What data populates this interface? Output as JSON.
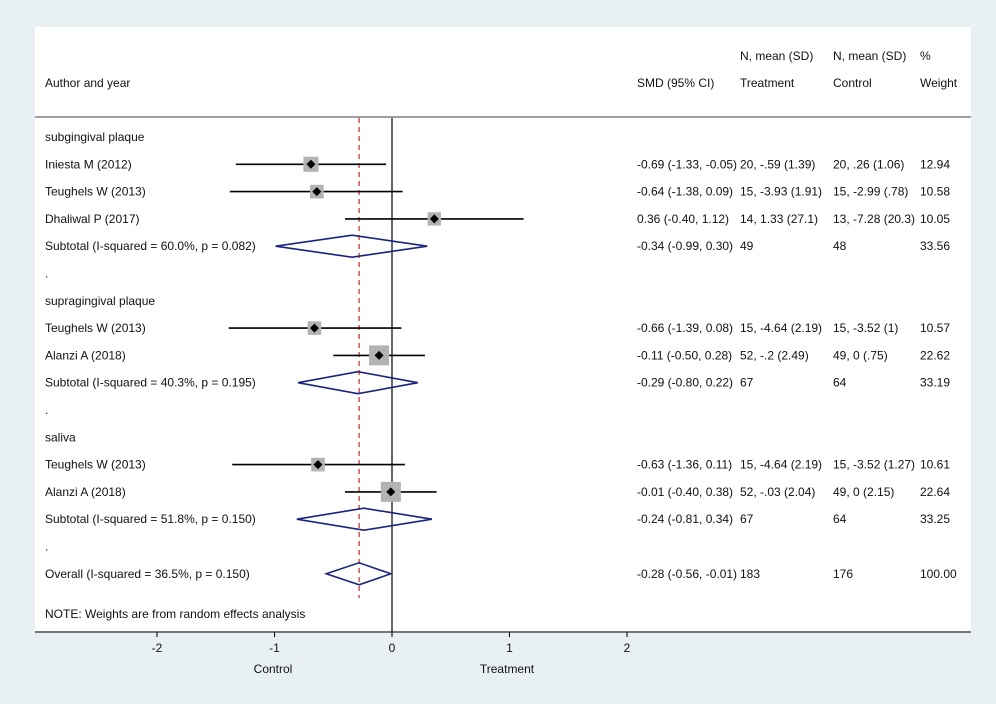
{
  "chart_data": {
    "type": "forest",
    "columns": {
      "study": "Author and year",
      "effect": "SMD (95% CI)",
      "treatment_top": "N, mean (SD)",
      "treatment_bottom": "Treatment",
      "control_top": "N, mean (SD)",
      "control_bottom": "Control",
      "weight_top": "%",
      "weight_bottom": "Weight"
    },
    "rows": [
      {
        "kind": "header",
        "label": "subgingival plaque"
      },
      {
        "kind": "study",
        "label": "Iniesta M (2012)",
        "est": -0.69,
        "lo": -1.33,
        "hi": -0.05,
        "weight": 12.94,
        "ci_text": "-0.69 (-1.33, -0.05)",
        "treat_text": "20, -.59 (1.39)",
        "ctrl_text": "20, .26 (1.06)",
        "weight_text": "12.94"
      },
      {
        "kind": "study",
        "label": "Teughels W (2013)",
        "est": -0.64,
        "lo": -1.38,
        "hi": 0.09,
        "weight": 10.58,
        "ci_text": "-0.64 (-1.38, 0.09)",
        "treat_text": "15, -3.93 (1.91)",
        "ctrl_text": "15, -2.99 (.78)",
        "weight_text": "10.58"
      },
      {
        "kind": "study",
        "label": "Dhaliwal P (2017)",
        "est": 0.36,
        "lo": -0.4,
        "hi": 1.12,
        "weight": 10.05,
        "ci_text": "0.36 (-0.40, 1.12)",
        "treat_text": "14, 1.33 (27.1)",
        "ctrl_text": "13, -7.28 (20.3)",
        "weight_text": "10.05"
      },
      {
        "kind": "subtotal",
        "label": "Subtotal  (I-squared = 60.0%, p = 0.082)",
        "est": -0.34,
        "lo": -0.99,
        "hi": 0.3,
        "ci_text": "-0.34 (-0.99, 0.30)",
        "treat_text": "49",
        "ctrl_text": "48",
        "weight_text": "33.56"
      },
      {
        "kind": "dot",
        "label": "."
      },
      {
        "kind": "header",
        "label": "supragingival plaque"
      },
      {
        "kind": "study",
        "label": "Teughels W (2013)",
        "est": -0.66,
        "lo": -1.39,
        "hi": 0.08,
        "weight": 10.57,
        "ci_text": "-0.66 (-1.39, 0.08)",
        "treat_text": "15, -4.64 (2.19)",
        "ctrl_text": "15, -3.52 (1)",
        "weight_text": "10.57"
      },
      {
        "kind": "study",
        "label": "Alanzi A (2018)",
        "est": -0.11,
        "lo": -0.5,
        "hi": 0.28,
        "weight": 22.62,
        "ci_text": "-0.11 (-0.50, 0.28)",
        "treat_text": "52, -.2 (2.49)",
        "ctrl_text": "49, 0 (.75)",
        "weight_text": "22.62"
      },
      {
        "kind": "subtotal",
        "label": "Subtotal  (I-squared = 40.3%, p = 0.195)",
        "est": -0.29,
        "lo": -0.8,
        "hi": 0.22,
        "ci_text": "-0.29 (-0.80, 0.22)",
        "treat_text": "67",
        "ctrl_text": "64",
        "weight_text": "33.19"
      },
      {
        "kind": "dot",
        "label": "."
      },
      {
        "kind": "header",
        "label": "saliva"
      },
      {
        "kind": "study",
        "label": "Teughels W (2013)",
        "est": -0.63,
        "lo": -1.36,
        "hi": 0.11,
        "weight": 10.61,
        "ci_text": "-0.63 (-1.36, 0.11)",
        "treat_text": "15, -4.64 (2.19)",
        "ctrl_text": "15, -3.52 (1.27)",
        "weight_text": "10.61"
      },
      {
        "kind": "study",
        "label": "Alanzi A (2018)",
        "est": -0.01,
        "lo": -0.4,
        "hi": 0.38,
        "weight": 22.64,
        "ci_text": "-0.01 (-0.40, 0.38)",
        "treat_text": "52, -.03 (2.04)",
        "ctrl_text": "49, 0 (2.15)",
        "weight_text": "22.64"
      },
      {
        "kind": "subtotal",
        "label": "Subtotal  (I-squared = 51.8%, p = 0.150)",
        "est": -0.24,
        "lo": -0.81,
        "hi": 0.34,
        "ci_text": "-0.24 (-0.81, 0.34)",
        "treat_text": "67",
        "ctrl_text": "64",
        "weight_text": "33.25"
      },
      {
        "kind": "dot",
        "label": "."
      },
      {
        "kind": "overall",
        "label": "Overall  (I-squared = 36.5%, p = 0.150)",
        "est": -0.28,
        "lo": -0.56,
        "hi": -0.01,
        "ci_text": "-0.28 (-0.56, -0.01)",
        "treat_text": "183",
        "ctrl_text": "176",
        "weight_text": "100.00"
      }
    ],
    "note": "NOTE: Weights are from random effects analysis",
    "x_axis": {
      "range": [
        -2,
        2
      ],
      "ticks": [
        -2,
        -1,
        0,
        1,
        2
      ],
      "tick_labels": [
        "-2",
        "-1",
        "0",
        "1",
        "2"
      ],
      "left_label": "Control",
      "right_label": "Treatment"
    },
    "null_line": 0,
    "overall_line": -0.28,
    "colors": {
      "diamond": "#1a237e",
      "overall_line": "#c62828",
      "box": "#b3b3b3",
      "ci_line": "#000000",
      "background": "#e9f0f3",
      "panel": "#ffffff"
    }
  }
}
